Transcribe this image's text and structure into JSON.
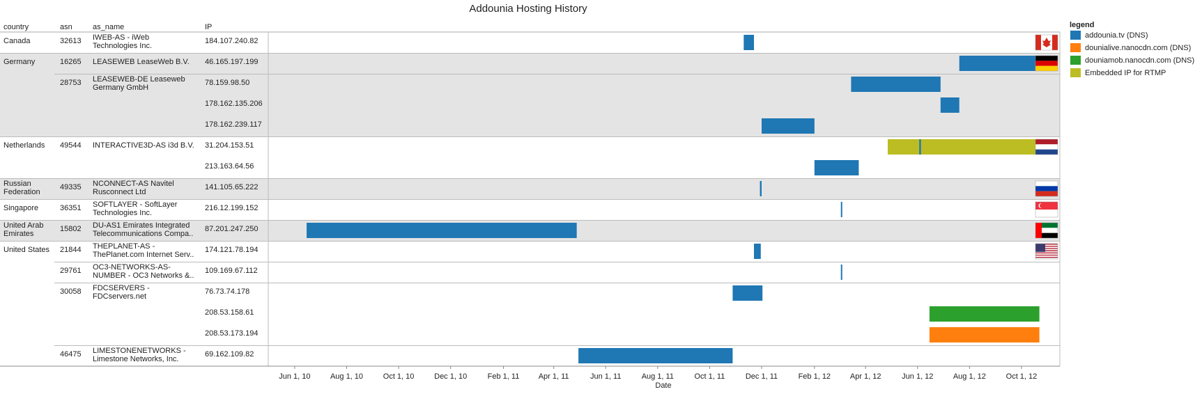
{
  "chart_data": {
    "type": "gantt",
    "title": "Addounia Hosting History",
    "columns": [
      "country",
      "asn",
      "as_name",
      "IP"
    ],
    "xlabel": "Date",
    "x_ticks": [
      "Jun 1, 10",
      "Aug 1, 10",
      "Oct 1, 10",
      "Dec 1, 10",
      "Feb 1, 11",
      "Apr 1, 11",
      "Jun 1, 11",
      "Aug 1, 11",
      "Oct 1, 11",
      "Dec 1, 11",
      "Feb 1, 12",
      "Apr 1, 12",
      "Jun 1, 12",
      "Aug 1, 12",
      "Oct 1, 12"
    ],
    "xlim": [
      "2010-05-01",
      "2012-11-15"
    ],
    "legend_title": "legend",
    "legend": [
      {
        "name": "addounia.tv (DNS)",
        "color": "#1f77b4"
      },
      {
        "name": "dounialive.nanocdn.com (DNS)",
        "color": "#ff7f0e"
      },
      {
        "name": "douniamob.nanocdn.com (DNS)",
        "color": "#2ca02c"
      },
      {
        "name": "Embedded IP for RTMP",
        "color": "#bcbd22"
      }
    ],
    "countries": [
      {
        "name": [
          "Canada"
        ],
        "flag": "ca",
        "shaded": false
      },
      {
        "name": [
          "Germany"
        ],
        "flag": "de",
        "shaded": true
      },
      {
        "name": [
          "Netherlands"
        ],
        "flag": "nl",
        "shaded": false
      },
      {
        "name": [
          "Russian",
          "Federation"
        ],
        "flag": "ru",
        "shaded": true
      },
      {
        "name": [
          "Singapore"
        ],
        "flag": "sg",
        "shaded": false
      },
      {
        "name": [
          "United Arab",
          "Emirates"
        ],
        "flag": "ae",
        "shaded": true
      },
      {
        "name": [
          "United States"
        ],
        "flag": "us",
        "shaded": false
      }
    ],
    "rows": [
      {
        "country": "Canada",
        "asn": "32613",
        "as_name": [
          "IWEB-AS - iWeb",
          "Technologies Inc."
        ],
        "ip": "184.107.240.82",
        "bars": [
          {
            "start": "2011-11-10",
            "end": "2011-11-22",
            "series": 0
          }
        ]
      },
      {
        "country": "Germany",
        "asn": "16265",
        "as_name": [
          "LEASEWEB LeaseWeb B.V."
        ],
        "ip": "46.165.197.199",
        "bars": [
          {
            "start": "2012-07-20",
            "end": "2012-10-20",
            "series": 0
          }
        ]
      },
      {
        "country": "Germany",
        "asn": "28753",
        "as_name": [
          "LEASEWEB-DE Leaseweb",
          "Germany GmbH"
        ],
        "ip": "78.159.98.50",
        "bars": [
          {
            "start": "2012-03-15",
            "end": "2012-06-28",
            "series": 0
          }
        ]
      },
      {
        "country": "Germany",
        "asn": "",
        "as_name": [],
        "ip": "178.162.135.206",
        "bars": [
          {
            "start": "2012-06-28",
            "end": "2012-07-20",
            "series": 0
          }
        ]
      },
      {
        "country": "Germany",
        "asn": "",
        "as_name": [],
        "ip": "178.162.239.117",
        "bars": [
          {
            "start": "2011-12-01",
            "end": "2012-02-01",
            "series": 0
          }
        ]
      },
      {
        "country": "Netherlands",
        "asn": "49544",
        "as_name": [
          "INTERACTIVE3D-AS i3d B.V."
        ],
        "ip": "31.204.153.51",
        "bars": [
          {
            "start": "2012-04-27",
            "end": "2012-10-22",
            "series": 3
          },
          {
            "start": "2012-06-03",
            "end": "2012-06-05",
            "series": 0
          }
        ]
      },
      {
        "country": "Netherlands",
        "asn": "",
        "as_name": [],
        "ip": "213.163.64.56",
        "bars": [
          {
            "start": "2012-02-01",
            "end": "2012-03-24",
            "series": 0
          }
        ]
      },
      {
        "country": "Russian Federation",
        "asn": "49335",
        "as_name": [
          "NCONNECT-AS Navitel",
          "Rusconnect Ltd"
        ],
        "ip": "141.105.65.222",
        "bars": [
          {
            "start": "2011-11-29",
            "end": "2011-12-01",
            "series": 0
          }
        ]
      },
      {
        "country": "Singapore",
        "asn": "36351",
        "as_name": [
          "SOFTLAYER - SoftLayer",
          "Technologies Inc."
        ],
        "ip": "216.12.199.152",
        "bars": [
          {
            "start": "2012-03-03",
            "end": "2012-03-04",
            "series": 0
          }
        ]
      },
      {
        "country": "United Arab Emirates",
        "asn": "15802",
        "as_name": [
          "DU-AS1 Emirates Integrated",
          "Telecommunications Compa.."
        ],
        "ip": "87.201.247.250",
        "bars": [
          {
            "start": "2010-06-15",
            "end": "2011-04-28",
            "series": 0
          }
        ]
      },
      {
        "country": "United States",
        "asn": "21844",
        "as_name": [
          "THEPLANET-AS -",
          "ThePlanet.com Internet Serv.."
        ],
        "ip": "174.121.78.194",
        "bars": [
          {
            "start": "2011-11-22",
            "end": "2011-11-30",
            "series": 0
          }
        ]
      },
      {
        "country": "United States",
        "asn": "29761",
        "as_name": [
          "OC3-NETWORKS-AS-",
          "NUMBER - OC3 Networks &.."
        ],
        "ip": "109.169.67.112",
        "bars": [
          {
            "start": "2012-03-03",
            "end": "2012-03-04",
            "series": 0
          }
        ]
      },
      {
        "country": "United States",
        "asn": "30058",
        "as_name": [
          "FDCSERVERS -",
          "FDCservers.net"
        ],
        "ip": "76.73.74.178",
        "bars": [
          {
            "start": "2011-10-28",
            "end": "2011-12-02",
            "series": 0
          }
        ]
      },
      {
        "country": "United States",
        "asn": "",
        "as_name": [],
        "ip": "208.53.158.61",
        "bars": [
          {
            "start": "2012-06-15",
            "end": "2012-10-22",
            "series": 2
          }
        ]
      },
      {
        "country": "United States",
        "asn": "",
        "as_name": [],
        "ip": "208.53.173.194",
        "bars": [
          {
            "start": "2012-06-15",
            "end": "2012-10-22",
            "series": 1
          }
        ]
      },
      {
        "country": "United States",
        "asn": "46475",
        "as_name": [
          "LIMESTONENETWORKS -",
          "Limestone Networks, Inc."
        ],
        "ip": "69.162.109.82",
        "bars": [
          {
            "start": "2011-04-30",
            "end": "2011-10-28",
            "series": 0
          }
        ]
      }
    ]
  }
}
